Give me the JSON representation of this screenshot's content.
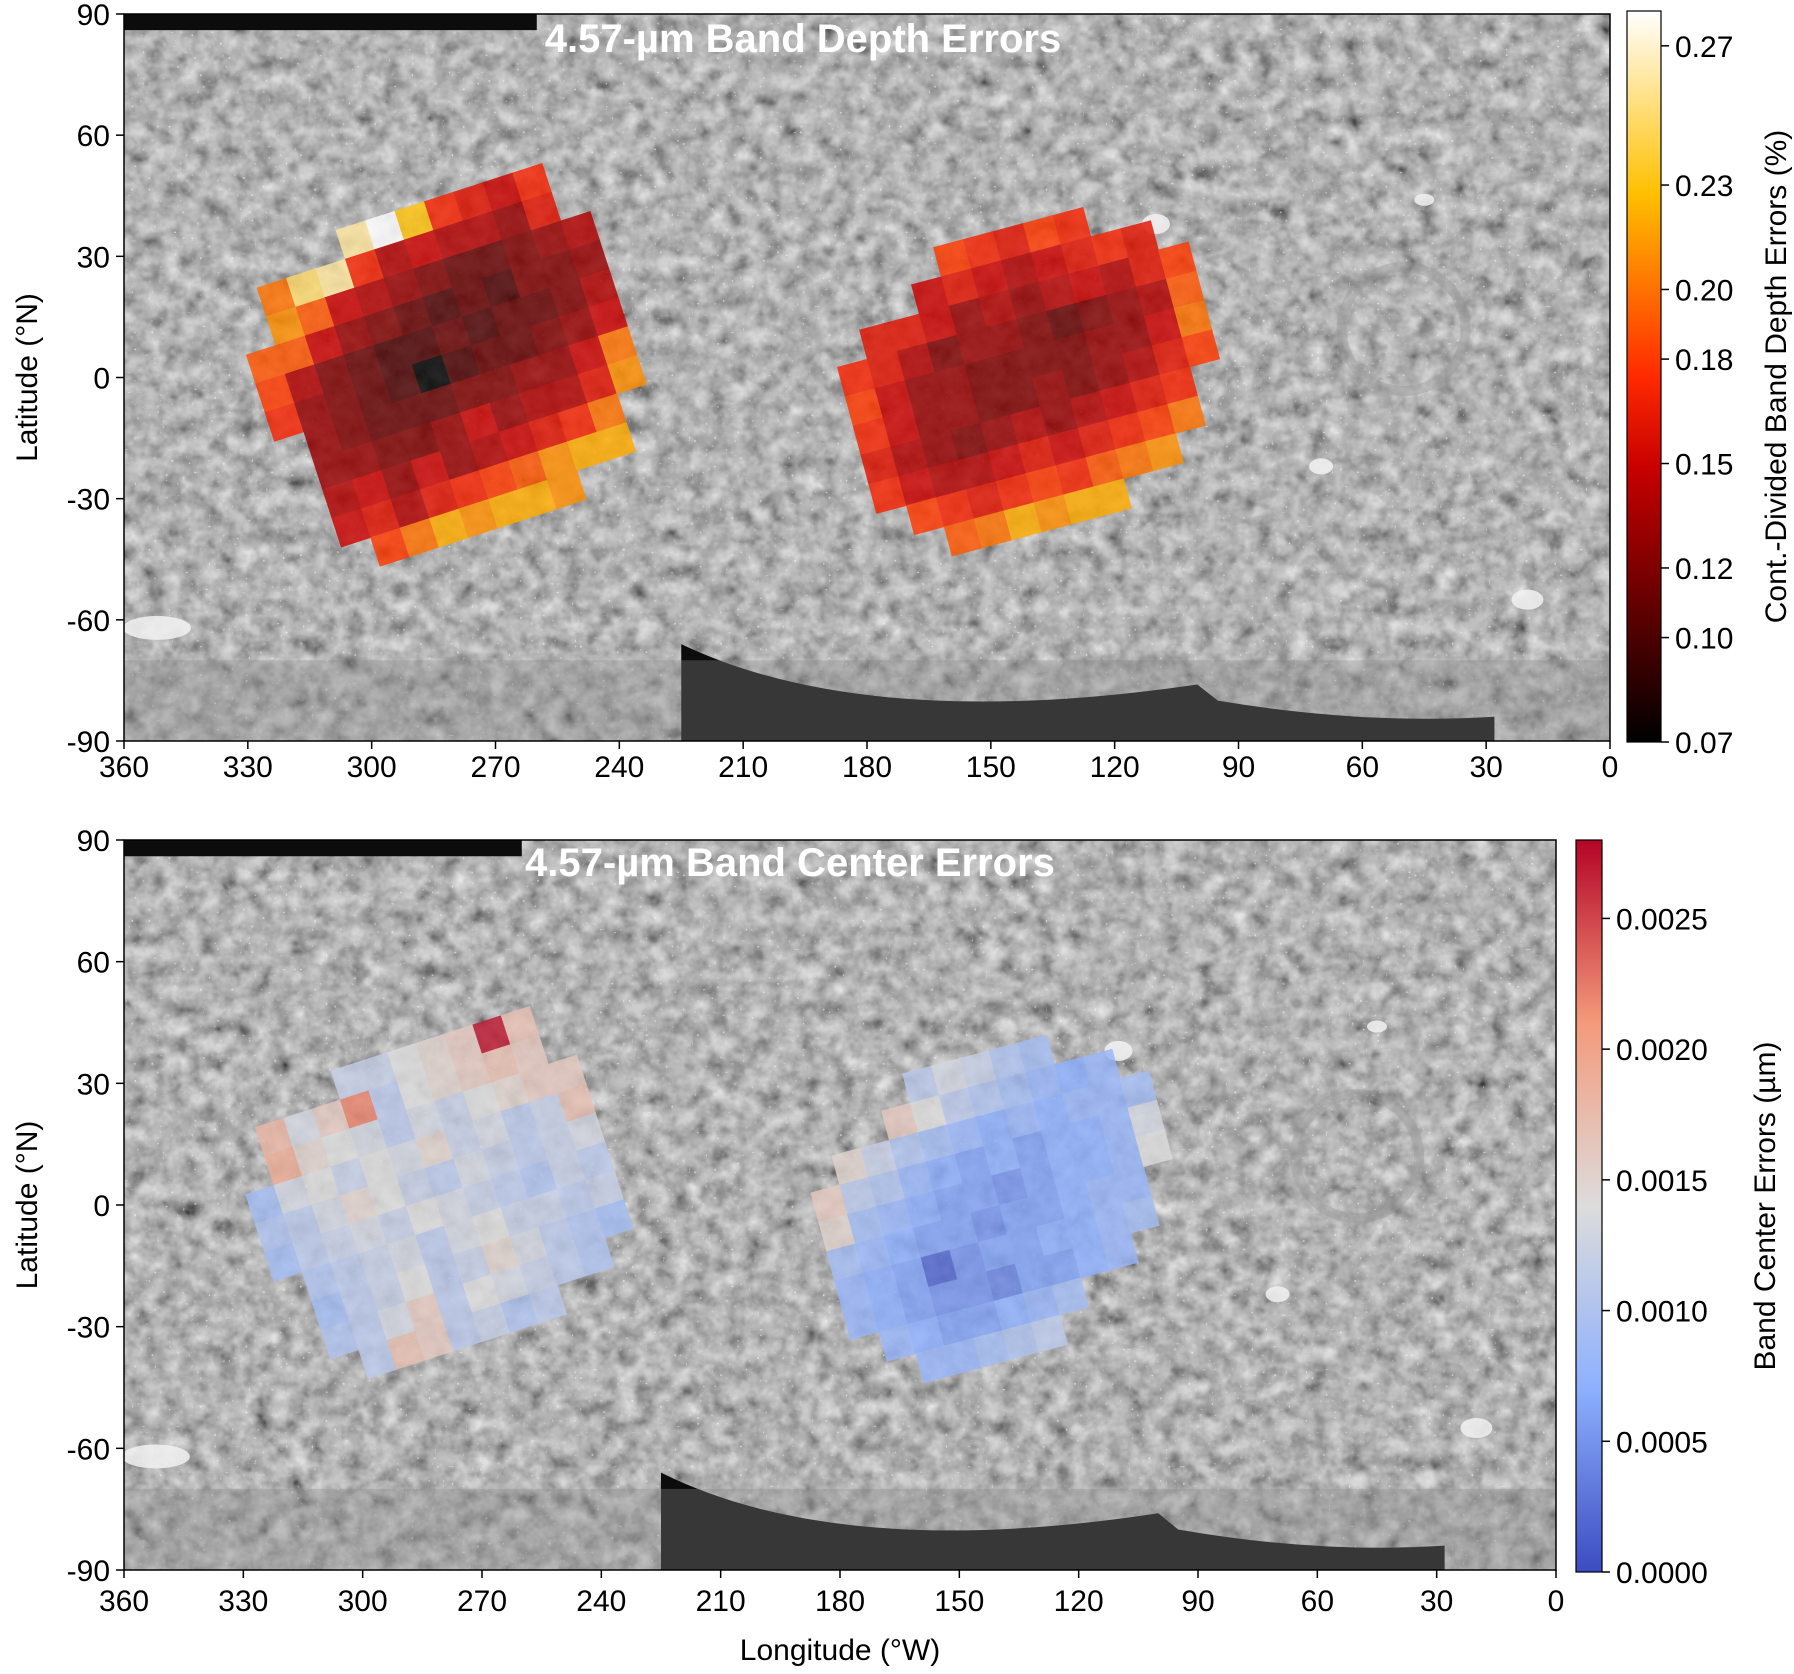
{
  "chart_data": [
    {
      "type": "heatmap",
      "title": "4.57-µm Band Depth Errors",
      "xlabel": "",
      "ylabel": "Latitude (°N)",
      "xlim": [
        360,
        0
      ],
      "ylim": [
        -90,
        90
      ],
      "xticks": [
        "360",
        "330",
        "300",
        "270",
        "240",
        "210",
        "180",
        "150",
        "120",
        "90",
        "60",
        "30",
        "0"
      ],
      "yticks": [
        "90",
        "60",
        "30",
        "0",
        "-30",
        "-60",
        "-90"
      ],
      "background": "grayscale global basemap mosaic",
      "colorbar": {
        "label": "Cont.-Divided Band Depth Errors (%)",
        "colormap": "hot",
        "range": [
          0.07,
          0.28
        ],
        "ticks": [
          "0.27",
          "0.23",
          "0.20",
          "0.18",
          "0.15",
          "0.12",
          "0.10",
          "0.07"
        ],
        "tick_values": [
          0.27,
          0.23,
          0.2,
          0.18,
          0.15,
          0.12,
          0.1,
          0.07
        ]
      },
      "regions": [
        {
          "name": "",
          "center_lon": 282,
          "center_lat": 2,
          "rotation_deg": -18,
          "cell_deg": 7.5,
          "rows": [
            [
              null,
              null,
              null,
              null,
              0.26,
              0.28,
              0.23,
              0.17,
              0.16,
              0.15,
              0.17,
              null
            ],
            [
              null,
              0.2,
              0.25,
              0.26,
              0.17,
              0.14,
              0.15,
              0.14,
              0.14,
              0.13,
              0.16,
              null
            ],
            [
              null,
              0.21,
              0.19,
              0.15,
              0.14,
              0.13,
              0.12,
              0.11,
              0.11,
              0.12,
              0.13,
              0.14
            ],
            [
              0.19,
              0.19,
              0.15,
              0.13,
              0.12,
              0.11,
              0.1,
              0.11,
              0.1,
              0.12,
              0.12,
              0.13
            ],
            [
              0.18,
              0.14,
              0.12,
              0.11,
              0.1,
              0.1,
              0.11,
              0.1,
              0.11,
              0.11,
              0.12,
              0.14
            ],
            [
              0.17,
              0.13,
              0.12,
              0.11,
              0.1,
              0.07,
              0.1,
              0.11,
              0.11,
              0.12,
              0.13,
              0.15
            ],
            [
              null,
              0.13,
              0.12,
              0.11,
              0.11,
              0.11,
              0.12,
              0.12,
              0.13,
              0.13,
              0.15,
              0.2
            ],
            [
              null,
              0.13,
              0.13,
              0.12,
              0.12,
              0.13,
              0.15,
              0.13,
              0.14,
              0.14,
              0.16,
              0.21
            ],
            [
              null,
              0.14,
              0.15,
              0.13,
              0.15,
              0.13,
              0.14,
              0.15,
              0.16,
              0.17,
              0.2,
              null
            ],
            [
              null,
              0.15,
              0.16,
              0.14,
              0.16,
              0.17,
              0.18,
              0.19,
              0.21,
              0.22,
              0.22,
              null
            ],
            [
              null,
              null,
              0.18,
              0.2,
              0.22,
              0.21,
              0.22,
              0.22,
              0.21,
              null,
              null,
              null
            ]
          ]
        },
        {
          "name": "",
          "center_lon": 140,
          "center_lat": 0,
          "rotation_deg": -15,
          "cell_deg": 7.5,
          "rows": [
            [
              null,
              null,
              null,
              null,
              0.18,
              0.17,
              0.16,
              0.18,
              0.17,
              null,
              null,
              null
            ],
            [
              null,
              null,
              null,
              0.15,
              0.16,
              0.15,
              0.14,
              0.15,
              0.16,
              0.17,
              0.16,
              null
            ],
            [
              null,
              0.16,
              0.16,
              0.15,
              0.13,
              0.14,
              0.13,
              0.14,
              0.15,
              0.14,
              0.16,
              0.18
            ],
            [
              0.17,
              0.16,
              0.14,
              0.12,
              0.13,
              0.13,
              0.12,
              0.11,
              0.12,
              0.13,
              0.14,
              0.19
            ],
            [
              0.18,
              0.15,
              0.13,
              0.13,
              0.12,
              0.12,
              0.12,
              0.12,
              0.13,
              0.13,
              0.15,
              0.2
            ],
            [
              0.17,
              0.15,
              0.13,
              0.13,
              0.12,
              0.12,
              0.13,
              0.12,
              0.13,
              0.14,
              0.16,
              0.18
            ],
            [
              0.16,
              0.14,
              0.13,
              0.12,
              0.13,
              0.14,
              0.13,
              0.14,
              0.15,
              0.16,
              0.17,
              null
            ],
            [
              0.17,
              0.15,
              0.14,
              0.14,
              0.15,
              0.16,
              0.15,
              0.16,
              0.17,
              0.18,
              0.2,
              null
            ],
            [
              null,
              0.18,
              0.17,
              0.16,
              0.17,
              0.18,
              0.17,
              0.19,
              0.2,
              0.21,
              null,
              null
            ],
            [
              null,
              null,
              0.19,
              0.2,
              0.22,
              0.21,
              0.22,
              0.22,
              null,
              null,
              null,
              null
            ]
          ]
        }
      ]
    },
    {
      "type": "heatmap",
      "title": "4.57-µm Band Center Errors",
      "xlabel": "Longitude (°W)",
      "ylabel": "Latitude (°N)",
      "xlim": [
        360,
        0
      ],
      "ylim": [
        -90,
        90
      ],
      "xticks": [
        "360",
        "330",
        "300",
        "270",
        "240",
        "210",
        "180",
        "150",
        "120",
        "90",
        "60",
        "30",
        "0"
      ],
      "yticks": [
        "90",
        "60",
        "30",
        "0",
        "-30",
        "-60",
        "-90"
      ],
      "background": "grayscale global basemap mosaic",
      "colorbar": {
        "label": "Band Center Errors (µm)",
        "colormap": "coolwarm",
        "range": [
          0.0,
          0.0028
        ],
        "ticks": [
          "0.0025",
          "0.0020",
          "0.0015",
          "0.0010",
          "0.0005",
          "0.0000"
        ],
        "tick_values": [
          0.0025,
          0.002,
          0.0015,
          0.001,
          0.0005,
          0.0
        ]
      },
      "regions": [
        {
          "name": "",
          "center_lon": 282,
          "center_lat": 2,
          "rotation_deg": -18,
          "cell_deg": 7.5,
          "rows": [
            [
              null,
              null,
              null,
              null,
              0.0012,
              0.0012,
              0.0014,
              0.0015,
              0.0016,
              0.0027,
              0.0017,
              null
            ],
            [
              null,
              0.0018,
              0.0013,
              0.0016,
              0.0022,
              0.0011,
              0.0014,
              0.0015,
              0.0016,
              0.0017,
              0.0016,
              null
            ],
            [
              null,
              0.0019,
              0.0015,
              0.0014,
              0.0013,
              0.0011,
              0.0013,
              0.0012,
              0.0014,
              0.0015,
              0.0016,
              0.0016
            ],
            [
              0.0009,
              0.0013,
              0.0014,
              0.0012,
              0.0014,
              0.0013,
              0.0015,
              0.0012,
              0.0013,
              0.0011,
              0.0012,
              0.0017
            ],
            [
              0.001,
              0.0011,
              0.0013,
              0.0015,
              0.0014,
              0.0012,
              0.0011,
              0.0013,
              0.0012,
              0.0011,
              0.0012,
              0.0013
            ],
            [
              0.0009,
              0.0011,
              0.0012,
              0.0013,
              0.0012,
              0.0014,
              0.0013,
              0.0012,
              0.0011,
              0.001,
              0.0012,
              0.0011
            ],
            [
              null,
              0.001,
              0.0011,
              0.0012,
              0.0013,
              0.0011,
              0.0013,
              0.0014,
              0.0012,
              0.0012,
              0.0011,
              0.0012
            ],
            [
              null,
              0.0009,
              0.0011,
              0.0012,
              0.0014,
              0.0011,
              0.0012,
              0.0015,
              0.0013,
              0.0011,
              0.001,
              0.0009
            ],
            [
              null,
              0.001,
              0.0011,
              0.0013,
              0.0016,
              0.0011,
              0.0014,
              0.0013,
              0.0012,
              0.0011,
              0.001,
              null
            ],
            [
              null,
              null,
              0.0011,
              0.0017,
              0.0016,
              0.0011,
              0.0012,
              0.001,
              0.0011,
              null,
              null,
              null
            ]
          ]
        },
        {
          "name": "",
          "center_lon": 140,
          "center_lat": 0,
          "rotation_deg": -15,
          "cell_deg": 7.5,
          "rows": [
            [
              null,
              null,
              null,
              null,
              0.0011,
              0.0013,
              0.0012,
              0.001,
              0.0009,
              null,
              null,
              null
            ],
            [
              null,
              null,
              null,
              0.0016,
              0.0014,
              0.0011,
              0.001,
              0.0009,
              0.0008,
              0.0007,
              0.0008,
              null
            ],
            [
              null,
              0.0015,
              0.0012,
              0.001,
              0.0009,
              0.0008,
              0.0007,
              0.0008,
              0.0007,
              0.0008,
              0.0008,
              0.0009
            ],
            [
              0.0016,
              0.0011,
              0.001,
              0.0008,
              0.0007,
              0.0006,
              0.0007,
              0.0006,
              0.0007,
              0.0007,
              0.0008,
              0.0013
            ],
            [
              0.0015,
              0.0009,
              0.0008,
              0.0007,
              0.0006,
              0.0006,
              0.0005,
              0.0006,
              0.0007,
              0.0007,
              0.0008,
              0.0014
            ],
            [
              0.0009,
              0.0008,
              0.0007,
              0.0006,
              0.0006,
              0.0005,
              0.0006,
              0.0006,
              0.0007,
              0.0008,
              0.0008,
              null
            ],
            [
              0.0008,
              0.0007,
              0.0006,
              0.0002,
              0.0005,
              0.0006,
              0.0006,
              0.0007,
              0.0007,
              0.0008,
              0.0009,
              null
            ],
            [
              0.0008,
              0.0007,
              0.0006,
              0.0005,
              0.0005,
              0.0004,
              0.0006,
              0.0006,
              0.0007,
              0.0008,
              null,
              null
            ],
            [
              null,
              0.0008,
              0.0007,
              0.0006,
              0.0006,
              0.0007,
              0.0008,
              0.0009,
              null,
              null,
              null,
              null
            ],
            [
              null,
              null,
              0.0008,
              0.0008,
              0.0009,
              0.001,
              0.0011,
              null,
              null,
              null,
              null,
              null
            ]
          ]
        }
      ]
    }
  ]
}
